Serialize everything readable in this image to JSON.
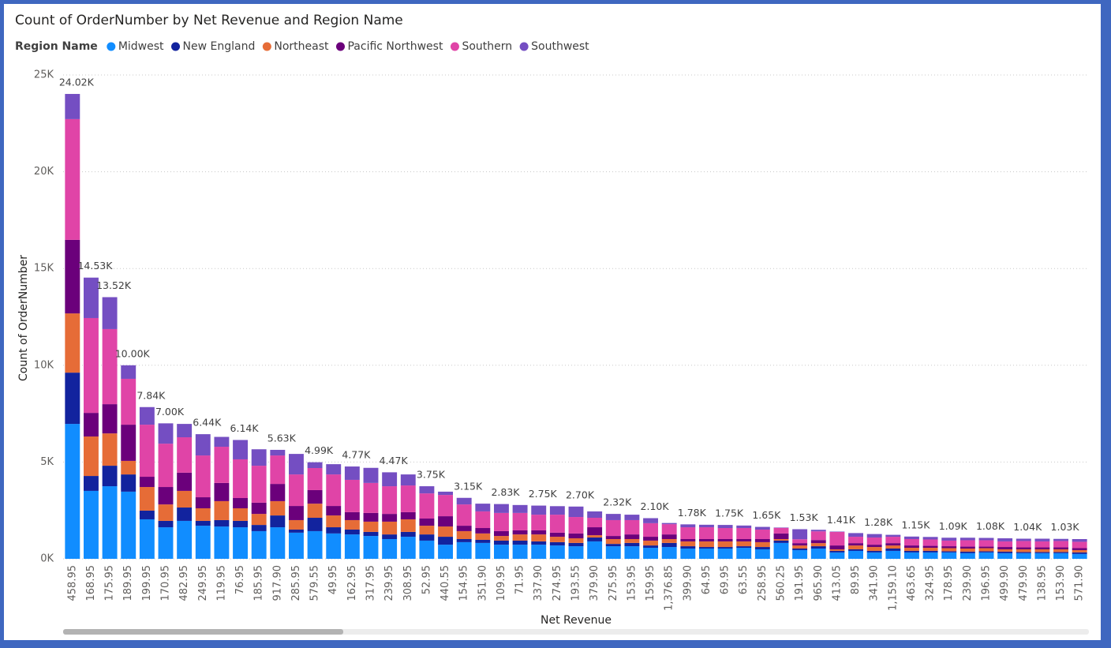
{
  "chart_data": {
    "type": "stacked_bar",
    "title": "Count of OrderNumber by Net Revenue and Region Name",
    "legend_title": "Region Name",
    "legend_position": "top-left",
    "xlabel": "Net Revenue",
    "ylabel": "Count of OrderNumber",
    "grid": true,
    "ylim": [
      0,
      25000
    ],
    "yticks": [
      {
        "value": 0,
        "label": "0K"
      },
      {
        "value": 5000,
        "label": "5K"
      },
      {
        "value": 10000,
        "label": "10K"
      },
      {
        "value": 15000,
        "label": "15K"
      },
      {
        "value": 20000,
        "label": "20K"
      },
      {
        "value": 25000,
        "label": "25K"
      }
    ],
    "categories": [
      "458.95",
      "168.95",
      "175.95",
      "189.95",
      "199.95",
      "170.95",
      "482.95",
      "249.95",
      "119.95",
      "76.95",
      "185.95",
      "917.90",
      "285.95",
      "579.55",
      "49.95",
      "162.95",
      "317.95",
      "239.95",
      "308.95",
      "52.95",
      "440.55",
      "154.95",
      "351.90",
      "109.95",
      "71.95",
      "337.90",
      "274.95",
      "193.55",
      "379.90",
      "275.95",
      "153.95",
      "159.95",
      "1,376.85",
      "399.90",
      "64.95",
      "69.95",
      "63.55",
      "258.95",
      "560.25",
      "191.95",
      "965.90",
      "413.05",
      "89.95",
      "341.90",
      "1,159.10",
      "463.65",
      "324.95",
      "178.95",
      "239.90",
      "196.95",
      "499.90",
      "479.90",
      "138.95",
      "153.90",
      "571.90"
    ],
    "series": [
      {
        "name": "Midwest",
        "color": "#118dff",
        "values": [
          6970,
          3510,
          3750,
          3470,
          2040,
          1630,
          1960,
          1710,
          1670,
          1630,
          1430,
          1630,
          1350,
          1430,
          1310,
          1260,
          1180,
          1020,
          1140,
          940,
          730,
          860,
          820,
          730,
          730,
          730,
          690,
          650,
          900,
          650,
          650,
          570,
          610,
          530,
          530,
          530,
          570,
          490,
          820,
          450,
          530,
          330,
          410,
          330,
          410,
          330,
          330,
          330,
          290,
          330,
          290,
          290,
          290,
          290,
          250
        ]
      },
      {
        "name": "New England",
        "color": "#12239e",
        "values": [
          2650,
          770,
          1060,
          890,
          450,
          330,
          690,
          250,
          330,
          330,
          320,
          610,
          160,
          690,
          320,
          250,
          210,
          240,
          250,
          320,
          410,
          160,
          160,
          210,
          210,
          170,
          170,
          170,
          200,
          120,
          170,
          120,
          210,
          120,
          80,
          80,
          80,
          120,
          120,
          80,
          120,
          80,
          80,
          80,
          120,
          80,
          80,
          60,
          80,
          60,
          80,
          60,
          60,
          60,
          80
        ]
      },
      {
        "name": "Northeast",
        "color": "#e66c37",
        "values": [
          3060,
          2040,
          1670,
          700,
          1220,
          850,
          860,
          650,
          980,
          650,
          570,
          740,
          490,
          730,
          610,
          490,
          530,
          660,
          650,
          450,
          530,
          410,
          330,
          240,
          320,
          360,
          280,
          240,
          120,
          250,
          200,
          250,
          200,
          250,
          290,
          290,
          250,
          250,
          80,
          160,
          160,
          80,
          200,
          200,
          160,
          160,
          160,
          160,
          160,
          160,
          120,
          140,
          140,
          140,
          120
        ]
      },
      {
        "name": "Pacific Northwest",
        "color": "#6b007b",
        "values": [
          3800,
          1220,
          1510,
          1870,
          530,
          900,
          940,
          570,
          940,
          530,
          580,
          890,
          730,
          700,
          490,
          410,
          450,
          400,
          370,
          370,
          530,
          280,
          280,
          250,
          210,
          210,
          210,
          250,
          410,
          160,
          240,
          200,
          240,
          120,
          120,
          120,
          120,
          160,
          290,
          120,
          160,
          200,
          120,
          120,
          120,
          120,
          100,
          100,
          100,
          80,
          120,
          100,
          100,
          100,
          100
        ]
      },
      {
        "name": "Southern",
        "color": "#e044a7",
        "values": [
          6240,
          4900,
          3880,
          2370,
          2690,
          2240,
          1830,
          2160,
          1870,
          2000,
          1910,
          1470,
          1630,
          1140,
          1630,
          1670,
          1550,
          1430,
          1380,
          1300,
          1100,
          1100,
          860,
          940,
          900,
          810,
          930,
          850,
          490,
          820,
          740,
          700,
          530,
          610,
          610,
          570,
          570,
          490,
          290,
          200,
          450,
          700,
          330,
          370,
          330,
          330,
          330,
          290,
          330,
          330,
          290,
          330,
          310,
          330,
          330
        ]
      },
      {
        "name": "Southwest",
        "color": "#744ec2",
        "values": [
          1300,
          2090,
          1650,
          700,
          910,
          1050,
          690,
          1100,
          510,
          1000,
          850,
          290,
          1060,
          300,
          530,
          690,
          780,
          720,
          570,
          370,
          170,
          340,
          400,
          460,
          410,
          470,
          440,
          540,
          330,
          320,
          280,
          260,
          60,
          150,
          130,
          160,
          130,
          140,
          20,
          520,
          80,
          20,
          190,
          180,
          100,
          130,
          130,
          150,
          130,
          120,
          160,
          120,
          140,
          110,
          140
        ]
      }
    ],
    "total_labels": [
      "24.02K",
      "14.53K",
      "13.52K",
      "10.00K",
      "7.84K",
      "7.00K",
      null,
      "6.44K",
      null,
      "6.14K",
      null,
      "5.63K",
      null,
      "4.99K",
      null,
      "4.77K",
      null,
      "4.47K",
      null,
      "3.75K",
      null,
      "3.15K",
      null,
      "2.83K",
      null,
      "2.75K",
      null,
      "2.70K",
      null,
      "2.32K",
      null,
      "2.10K",
      null,
      "1.78K",
      null,
      "1.75K",
      null,
      "1.65K",
      null,
      "1.53K",
      null,
      "1.41K",
      null,
      "1.28K",
      null,
      "1.15K",
      null,
      "1.09K",
      null,
      "1.08K",
      null,
      "1.04K",
      null,
      "1.03K",
      null
    ]
  }
}
